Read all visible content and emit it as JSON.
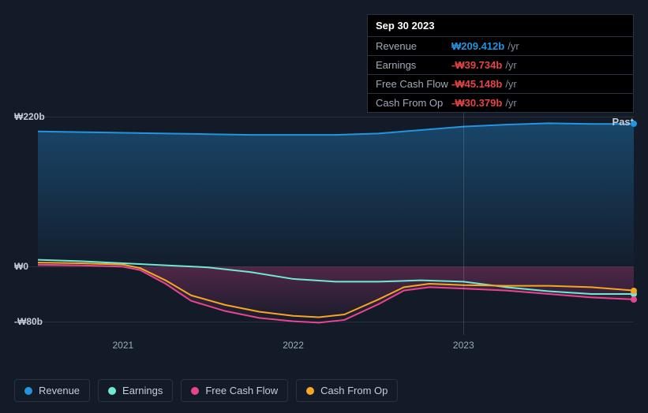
{
  "tooltip": {
    "date": "Sep 30 2023",
    "suffix": "/yr",
    "rows": [
      {
        "label": "Revenue",
        "value": "₩209.412b",
        "sign": "pos"
      },
      {
        "label": "Earnings",
        "value": "-₩39.734b",
        "sign": "neg"
      },
      {
        "label": "Free Cash Flow",
        "value": "-₩45.148b",
        "sign": "neg"
      },
      {
        "label": "Cash From Op",
        "value": "-₩30.379b",
        "sign": "neg"
      }
    ]
  },
  "chart": {
    "type": "area",
    "xlim_years": [
      2020.5,
      2024.0
    ],
    "ylim": [
      -100,
      230
    ],
    "yticks": [
      {
        "v": 220,
        "label": "₩220b"
      },
      {
        "v": 0,
        "label": "₩0"
      },
      {
        "v": -80,
        "label": "-₩80b"
      }
    ],
    "xticks": [
      {
        "v": 2021,
        "label": "2021"
      },
      {
        "v": 2022,
        "label": "2022"
      },
      {
        "v": 2023,
        "label": "2023"
      }
    ],
    "marker_x": 2023.0,
    "past_label": "Past",
    "background_color": "#131b29",
    "grid_color": "rgba(160,169,184,0.15)",
    "label_color": "#c4ccd9",
    "series": [
      {
        "key": "revenue",
        "label": "Revenue",
        "color": "#2394df",
        "fill": true,
        "fill_top": "rgba(35,148,223,0.35)",
        "fill_bottom": "rgba(35,148,223,0.02)",
        "line_width": 2,
        "points": [
          [
            2020.5,
            198
          ],
          [
            2020.75,
            197
          ],
          [
            2021.0,
            196
          ],
          [
            2021.25,
            195
          ],
          [
            2021.5,
            194
          ],
          [
            2021.75,
            193
          ],
          [
            2022.0,
            193
          ],
          [
            2022.25,
            193
          ],
          [
            2022.5,
            195
          ],
          [
            2022.75,
            200
          ],
          [
            2023.0,
            205
          ],
          [
            2023.25,
            208
          ],
          [
            2023.5,
            210
          ],
          [
            2023.75,
            209
          ],
          [
            2024.0,
            209
          ]
        ]
      },
      {
        "key": "earnings",
        "label": "Earnings",
        "color": "#71e7d6",
        "fill": false,
        "line_width": 2,
        "points": [
          [
            2020.5,
            10
          ],
          [
            2020.75,
            8
          ],
          [
            2021.0,
            5
          ],
          [
            2021.25,
            2
          ],
          [
            2021.5,
            -1
          ],
          [
            2021.75,
            -8
          ],
          [
            2022.0,
            -18
          ],
          [
            2022.25,
            -22
          ],
          [
            2022.5,
            -22
          ],
          [
            2022.75,
            -20
          ],
          [
            2023.0,
            -22
          ],
          [
            2023.25,
            -30
          ],
          [
            2023.5,
            -36
          ],
          [
            2023.75,
            -40
          ],
          [
            2024.0,
            -40
          ]
        ]
      },
      {
        "key": "fcf",
        "label": "Free Cash Flow",
        "color": "#e64590",
        "fill": true,
        "fill_top": "rgba(230,69,144,0.30)",
        "fill_bottom": "rgba(230,69,144,0.02)",
        "line_width": 2,
        "points": [
          [
            2020.5,
            3
          ],
          [
            2020.75,
            2
          ],
          [
            2021.0,
            0
          ],
          [
            2021.1,
            -5
          ],
          [
            2021.25,
            -25
          ],
          [
            2021.4,
            -50
          ],
          [
            2021.6,
            -65
          ],
          [
            2021.8,
            -75
          ],
          [
            2022.0,
            -80
          ],
          [
            2022.15,
            -82
          ],
          [
            2022.3,
            -78
          ],
          [
            2022.5,
            -55
          ],
          [
            2022.65,
            -35
          ],
          [
            2022.8,
            -30
          ],
          [
            2023.0,
            -32
          ],
          [
            2023.25,
            -35
          ],
          [
            2023.5,
            -40
          ],
          [
            2023.75,
            -45
          ],
          [
            2024.0,
            -48
          ]
        ]
      },
      {
        "key": "cfo",
        "label": "Cash From Op",
        "color": "#f5a623",
        "fill": false,
        "line_width": 2,
        "points": [
          [
            2020.5,
            6
          ],
          [
            2020.75,
            5
          ],
          [
            2021.0,
            3
          ],
          [
            2021.1,
            -2
          ],
          [
            2021.25,
            -20
          ],
          [
            2021.4,
            -42
          ],
          [
            2021.6,
            -56
          ],
          [
            2021.8,
            -66
          ],
          [
            2022.0,
            -72
          ],
          [
            2022.15,
            -74
          ],
          [
            2022.3,
            -70
          ],
          [
            2022.5,
            -48
          ],
          [
            2022.65,
            -30
          ],
          [
            2022.8,
            -25
          ],
          [
            2023.0,
            -27
          ],
          [
            2023.25,
            -28
          ],
          [
            2023.5,
            -28
          ],
          [
            2023.75,
            -30
          ],
          [
            2024.0,
            -35
          ]
        ]
      }
    ]
  },
  "legend": [
    {
      "key": "revenue",
      "label": "Revenue",
      "color": "#2394df"
    },
    {
      "key": "earnings",
      "label": "Earnings",
      "color": "#71e7d6"
    },
    {
      "key": "fcf",
      "label": "Free Cash Flow",
      "color": "#e64590"
    },
    {
      "key": "cfo",
      "label": "Cash From Op",
      "color": "#f5a623"
    }
  ]
}
